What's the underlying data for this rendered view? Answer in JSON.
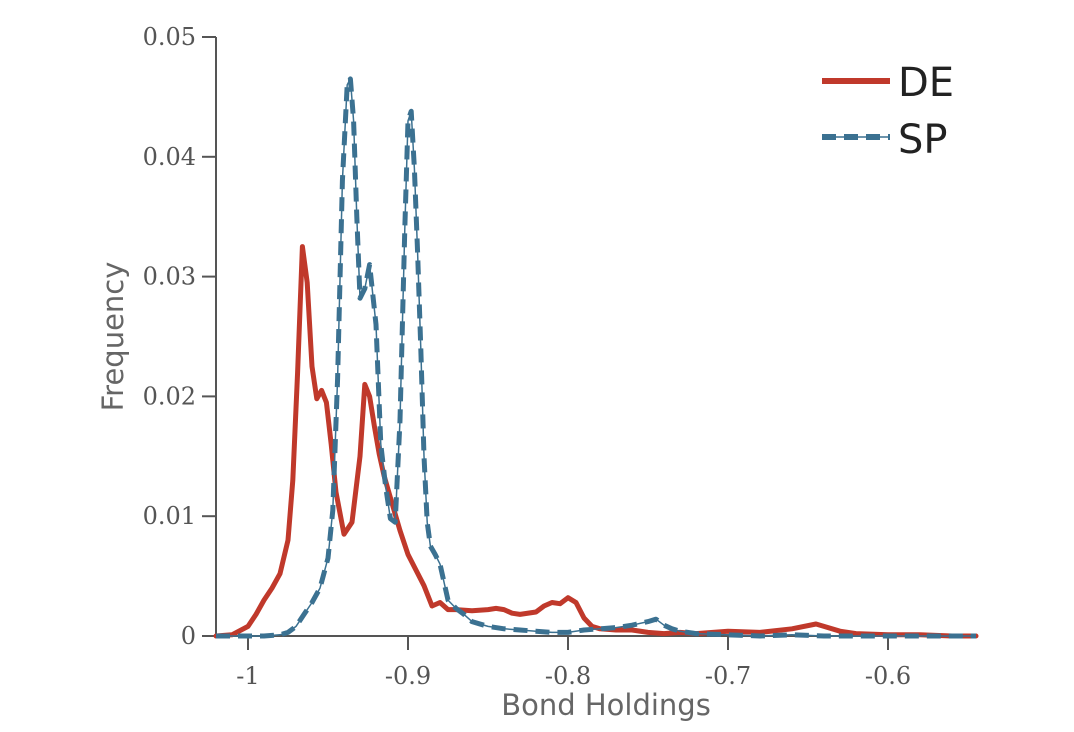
{
  "chart_data": {
    "type": "line",
    "title": "",
    "xlabel": "Bond Holdings",
    "ylabel": "Frequency",
    "xlim": [
      -1.02,
      -0.545
    ],
    "ylim": [
      0,
      0.05
    ],
    "grid": false,
    "legend_position": "top-right",
    "x_ticks": [
      -1,
      -0.9,
      -0.8,
      -0.7,
      -0.6
    ],
    "x_tick_labels": [
      "-1",
      "-0.9",
      "-0.8",
      "-0.7",
      "-0.6"
    ],
    "y_ticks": [
      0,
      0.01,
      0.02,
      0.03,
      0.04,
      0.05
    ],
    "y_tick_labels": [
      "0",
      "0.01",
      "0.02",
      "0.03",
      "0.04",
      "0.05"
    ],
    "series": [
      {
        "name": "DE",
        "color": "#c0392b",
        "style": "solid",
        "x": [
          -1.02,
          -1.01,
          -1.0,
          -0.995,
          -0.99,
          -0.985,
          -0.98,
          -0.975,
          -0.972,
          -0.969,
          -0.966,
          -0.963,
          -0.96,
          -0.957,
          -0.954,
          -0.951,
          -0.948,
          -0.945,
          -0.94,
          -0.935,
          -0.93,
          -0.927,
          -0.924,
          -0.921,
          -0.918,
          -0.915,
          -0.912,
          -0.905,
          -0.9,
          -0.895,
          -0.89,
          -0.885,
          -0.88,
          -0.875,
          -0.87,
          -0.86,
          -0.85,
          -0.845,
          -0.84,
          -0.835,
          -0.83,
          -0.82,
          -0.815,
          -0.81,
          -0.805,
          -0.8,
          -0.795,
          -0.79,
          -0.785,
          -0.78,
          -0.77,
          -0.76,
          -0.75,
          -0.74,
          -0.73,
          -0.72,
          -0.7,
          -0.68,
          -0.66,
          -0.645,
          -0.64,
          -0.63,
          -0.62,
          -0.6,
          -0.58,
          -0.56,
          -0.545
        ],
        "values": [
          0,
          0.0001,
          0.0008,
          0.0018,
          0.003,
          0.004,
          0.0052,
          0.008,
          0.013,
          0.022,
          0.0325,
          0.0295,
          0.0225,
          0.0198,
          0.0205,
          0.0195,
          0.016,
          0.012,
          0.0085,
          0.0095,
          0.015,
          0.021,
          0.02,
          0.0175,
          0.0152,
          0.0134,
          0.012,
          0.0088,
          0.0068,
          0.0055,
          0.0042,
          0.0025,
          0.0028,
          0.0022,
          0.0022,
          0.0021,
          0.0022,
          0.0023,
          0.0022,
          0.0019,
          0.0018,
          0.002,
          0.0025,
          0.0028,
          0.0027,
          0.0032,
          0.0028,
          0.0015,
          0.0008,
          0.0006,
          0.0005,
          0.0005,
          0.0003,
          0.0002,
          0.0003,
          0.0002,
          0.0004,
          0.0003,
          0.0006,
          0.001,
          0.0008,
          0.0004,
          0.0002,
          0.0001,
          0.0001,
          0,
          0
        ]
      },
      {
        "name": "SP",
        "color": "#3b7191",
        "style": "dashdot",
        "x": [
          -1.02,
          -0.99,
          -0.98,
          -0.975,
          -0.97,
          -0.965,
          -0.96,
          -0.955,
          -0.95,
          -0.947,
          -0.944,
          -0.941,
          -0.938,
          -0.936,
          -0.934,
          -0.932,
          -0.93,
          -0.927,
          -0.924,
          -0.92,
          -0.917,
          -0.914,
          -0.911,
          -0.908,
          -0.905,
          -0.902,
          -0.9,
          -0.898,
          -0.896,
          -0.894,
          -0.892,
          -0.89,
          -0.888,
          -0.886,
          -0.883,
          -0.88,
          -0.875,
          -0.87,
          -0.865,
          -0.86,
          -0.85,
          -0.84,
          -0.83,
          -0.82,
          -0.81,
          -0.8,
          -0.79,
          -0.78,
          -0.77,
          -0.76,
          -0.75,
          -0.745,
          -0.74,
          -0.735,
          -0.73,
          -0.72,
          -0.7,
          -0.68,
          -0.66,
          -0.64,
          -0.62,
          -0.6,
          -0.58,
          -0.545
        ],
        "values": [
          0,
          0,
          0.0001,
          0.0003,
          0.0008,
          0.0018,
          0.0028,
          0.004,
          0.0065,
          0.0105,
          0.0215,
          0.038,
          0.046,
          0.0465,
          0.043,
          0.035,
          0.0282,
          0.029,
          0.031,
          0.026,
          0.016,
          0.0125,
          0.0098,
          0.0095,
          0.018,
          0.034,
          0.043,
          0.0438,
          0.039,
          0.032,
          0.024,
          0.015,
          0.0095,
          0.0075,
          0.0068,
          0.006,
          0.003,
          0.0023,
          0.0018,
          0.0012,
          0.0008,
          0.0006,
          0.0005,
          0.0004,
          0.0003,
          0.0003,
          0.0005,
          0.0006,
          0.0007,
          0.0009,
          0.0012,
          0.0014,
          0.0009,
          0.0006,
          0.0004,
          0.0002,
          0.0001,
          0,
          0.0001,
          0,
          0,
          0,
          0,
          0
        ]
      }
    ]
  }
}
